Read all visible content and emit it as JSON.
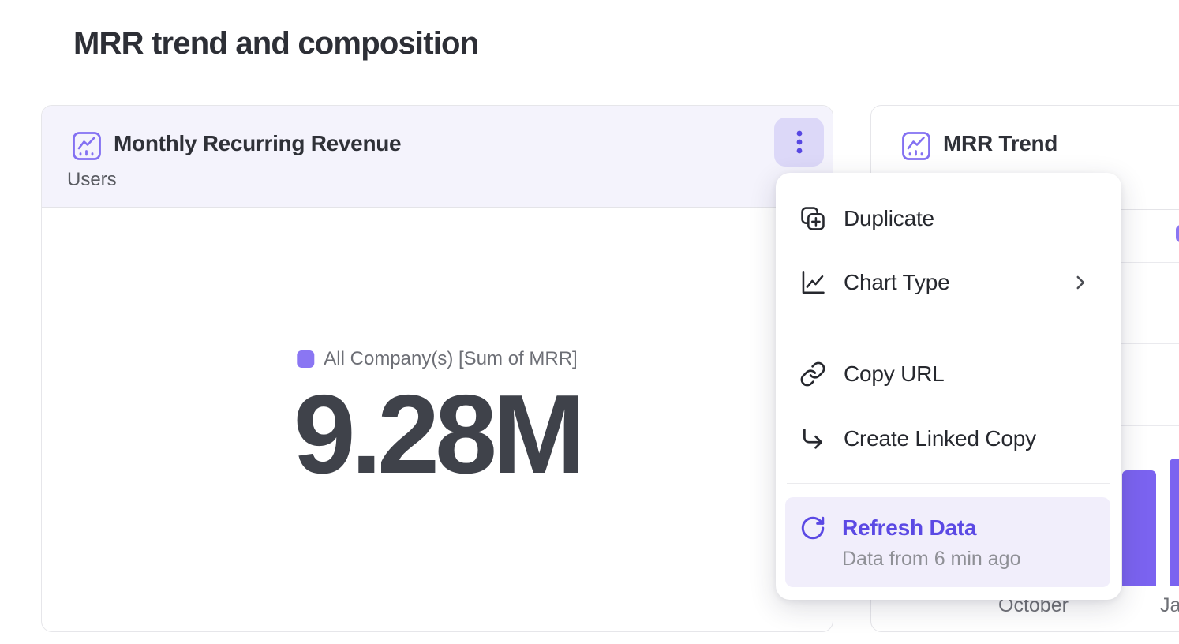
{
  "page": {
    "title": "MRR trend and composition"
  },
  "colors": {
    "accent_purple": "#5b49e4",
    "icon_purple": "#8370f2",
    "bar_purple": "#7b63f0",
    "legend_purple": "#8a76f3",
    "header_tint": "#f4f3fc",
    "kebab_bg": "#dcd8f8",
    "refresh_row_bg": "#f1eefb"
  },
  "mrr_card": {
    "title": "Monthly Recurring Revenue",
    "subtitle": "Users",
    "widget_icon": "trend-chart-icon",
    "menu_button_icon": "kebab-menu-icon",
    "legend_label": "All Company(s) [Sum of MRR]",
    "value": "9.28M"
  },
  "context_menu": {
    "items": [
      {
        "label": "Duplicate",
        "icon": "duplicate-icon"
      },
      {
        "label": "Chart Type",
        "icon": "chart-type-icon",
        "has_submenu": true
      },
      {
        "label": "Copy URL",
        "icon": "link-icon"
      },
      {
        "label": "Create Linked Copy",
        "icon": "corner-down-right-icon"
      },
      {
        "label": "Refresh Data",
        "icon": "refresh-icon",
        "sublabel": "Data from 6 min ago",
        "highlighted": true
      }
    ]
  },
  "trend_card": {
    "title": "MRR Trend",
    "widget_icon": "trend-chart-icon",
    "x_labels": [
      "October",
      "January"
    ]
  },
  "chart_data": [
    {
      "type": "metric",
      "title": "Monthly Recurring Revenue",
      "series": "All Company(s) [Sum of MRR]",
      "value": "9.28M"
    },
    {
      "type": "bar",
      "title": "MRR Trend",
      "visible_x_labels": [
        "October",
        "January"
      ],
      "visible_bar_height_fractions": [
        0.333,
        0.367
      ],
      "bar_color": "#7b63f0",
      "grid": true,
      "note": "chart mostly hidden behind open context menu"
    }
  ]
}
